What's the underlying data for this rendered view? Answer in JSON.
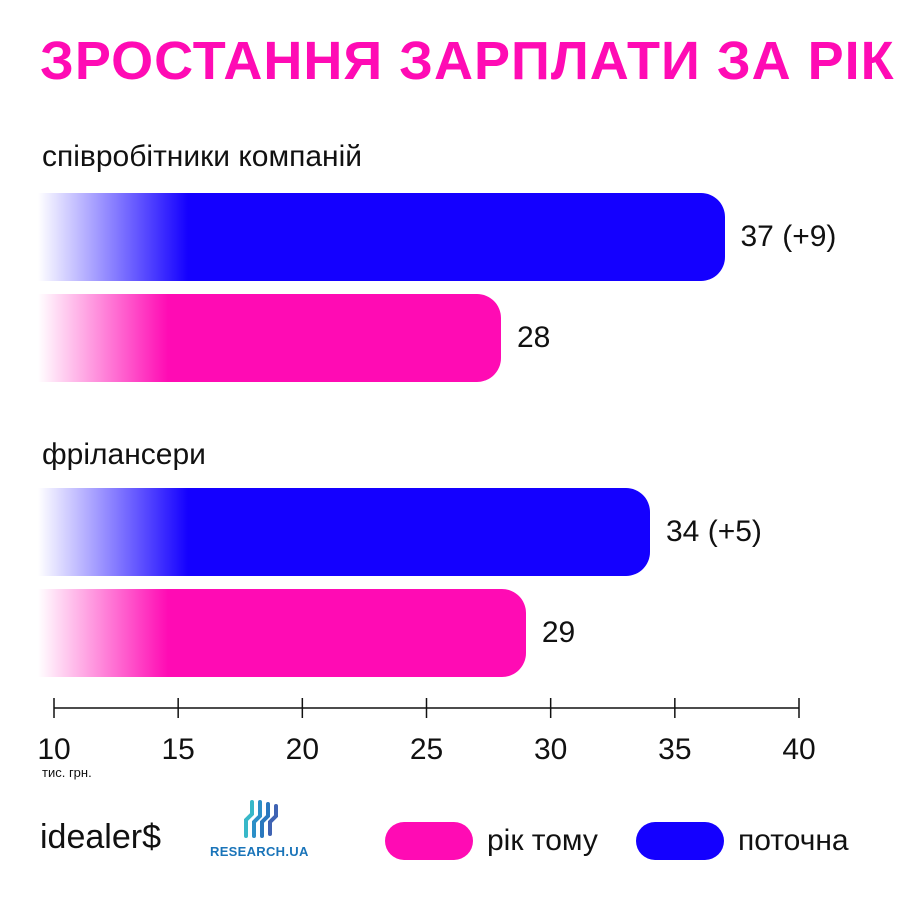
{
  "title": "ЗРОСТАННЯ ЗАРПЛАТИ ЗА РІК",
  "colors": {
    "current": "#1400ff",
    "prior": "#ff0bb4",
    "title": "#ff0bb4",
    "research": "#1a74b9"
  },
  "chart_data": {
    "type": "bar",
    "orientation": "horizontal",
    "categories": [
      "співробітники компаній",
      "фрілансери"
    ],
    "series": [
      {
        "name": "поточна",
        "values": [
          37,
          34
        ],
        "labels": [
          "37 (+9)",
          "34 (+5)"
        ]
      },
      {
        "name": "рік тому",
        "values": [
          28,
          29
        ],
        "labels": [
          "28",
          "29"
        ]
      }
    ],
    "xlim": [
      10,
      40
    ],
    "xticks": [
      10,
      15,
      20,
      25,
      30,
      35,
      40
    ],
    "xlabel": "тис. грн.",
    "legend": [
      {
        "label": "рік тому",
        "color": "#ff0bb4"
      },
      {
        "label": "поточна",
        "color": "#1400ff"
      }
    ]
  },
  "footer": {
    "logo_idealers": "idealer$",
    "logo_research": "RESEARCH.UA"
  }
}
